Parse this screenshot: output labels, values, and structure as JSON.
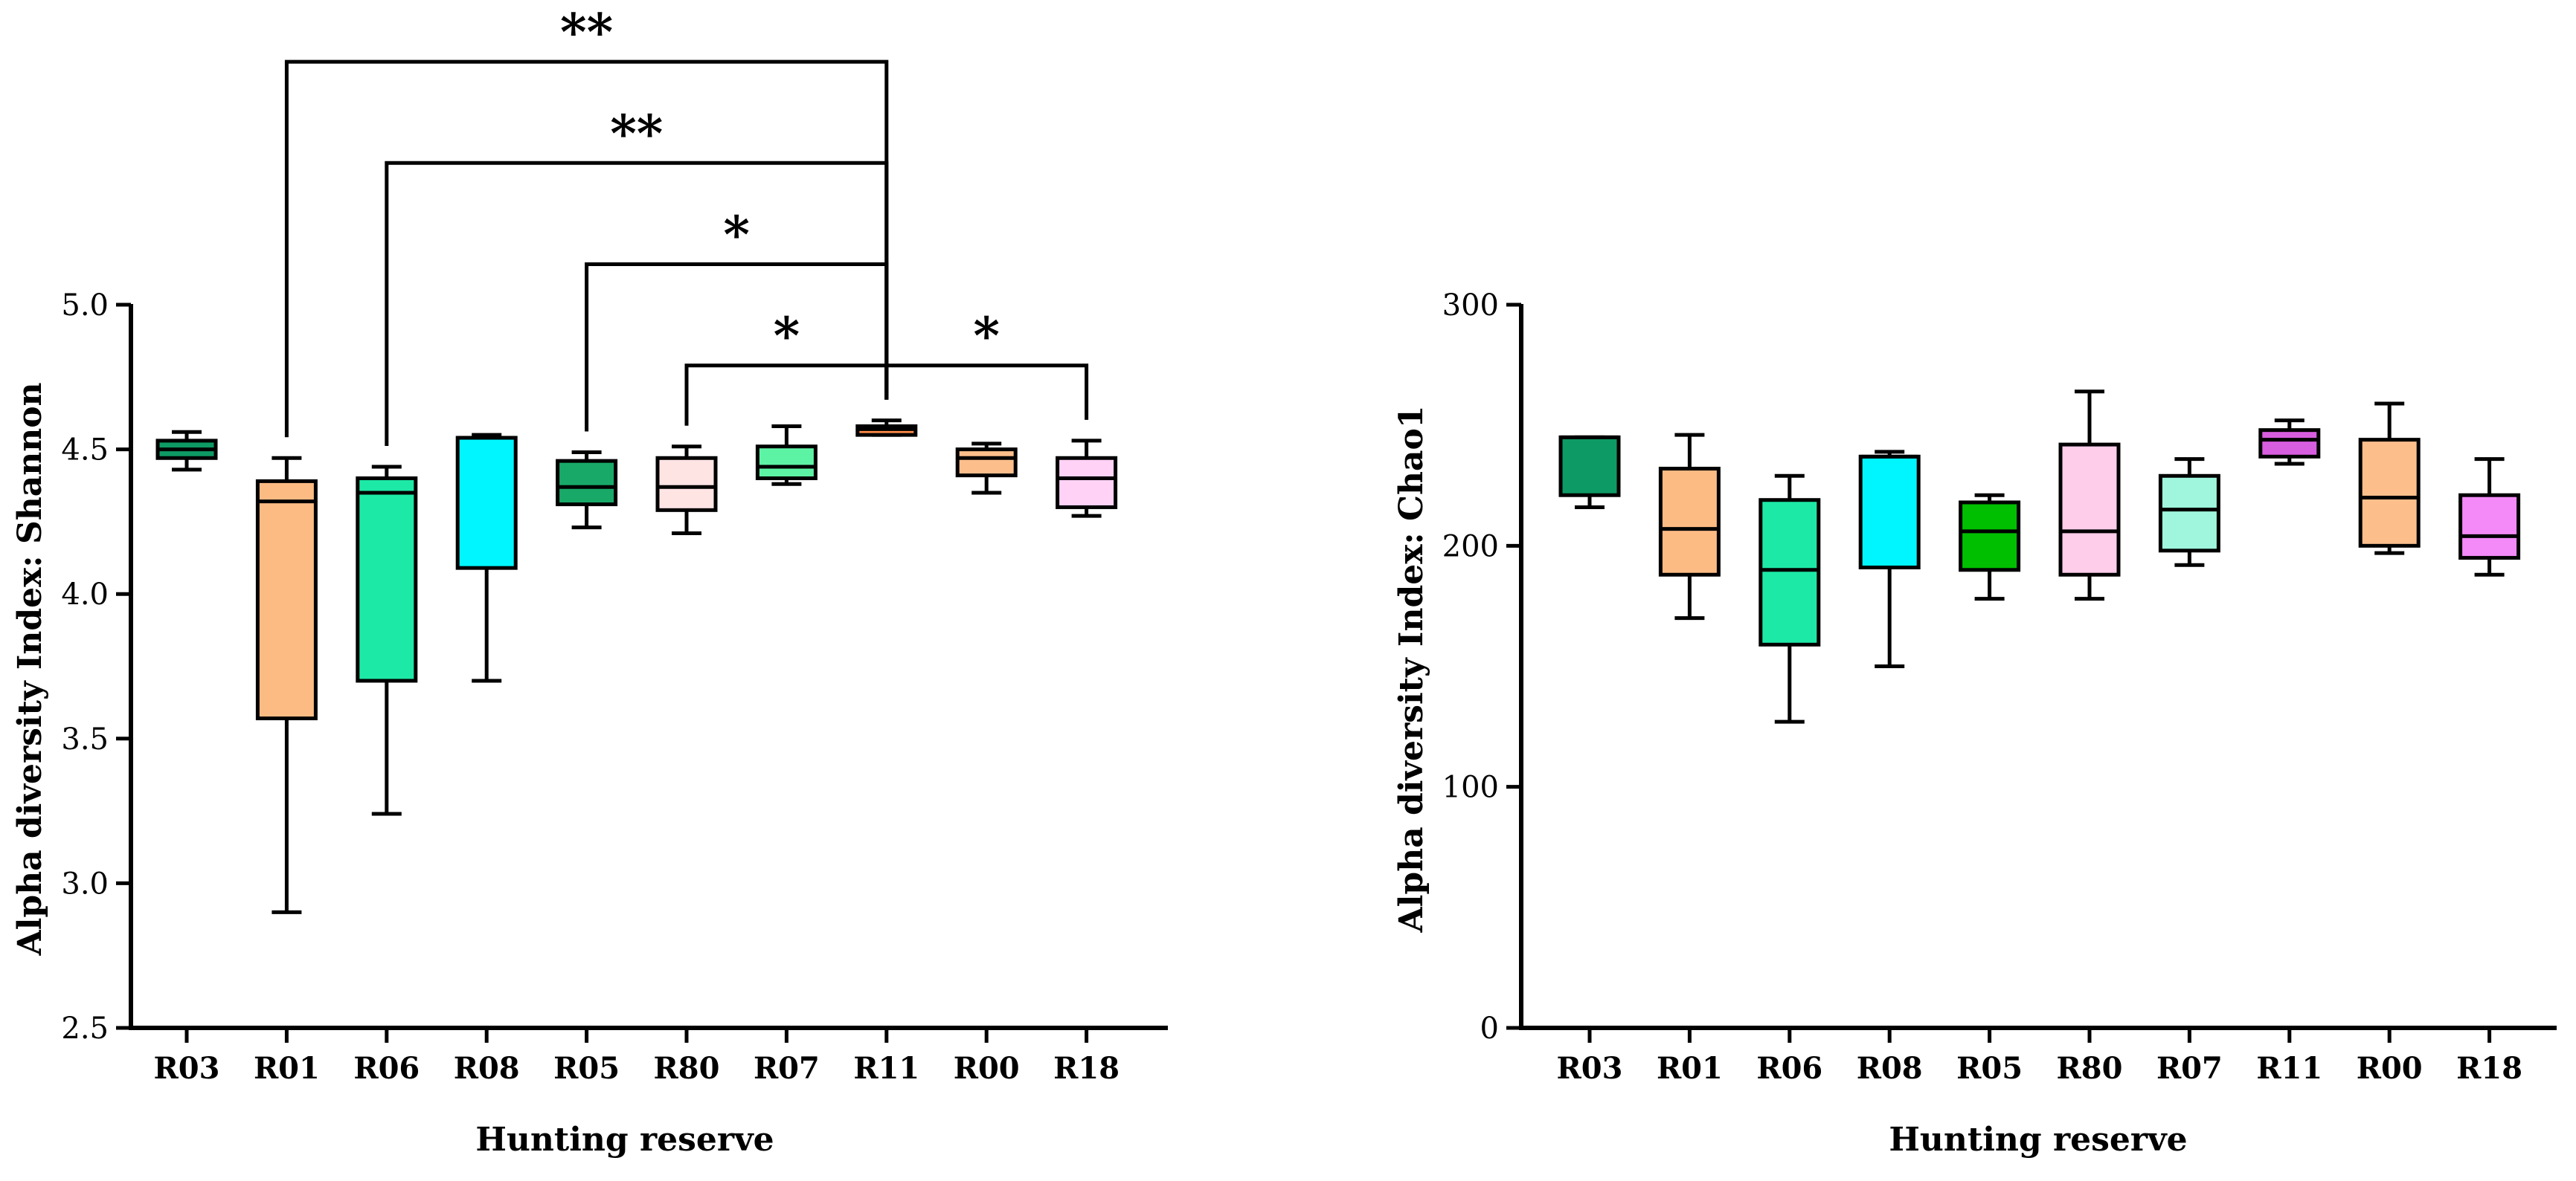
{
  "chart_data": [
    {
      "type": "box",
      "title": "",
      "xlabel": "Hunting reserve",
      "ylabel": "Alpha diversity Index: Shannon",
      "ylim": [
        2.5,
        5.0
      ],
      "yticks": [
        "2.5",
        "3.0",
        "3.5",
        "4.0",
        "4.5",
        "5.0"
      ],
      "categories": [
        "R03",
        "R01",
        "R06",
        "R08",
        "R05",
        "R80",
        "R07",
        "R11",
        "R00",
        "R18"
      ],
      "colors": [
        "#0e9a64",
        "#fdbb84",
        "#1de9a6",
        "#00f6ff",
        "#18a968",
        "#ffe4e4",
        "#5df3a4",
        "#ff8c4a",
        "#fcbf8c",
        "#ffd2f6"
      ],
      "boxes": [
        {
          "min": 4.43,
          "q1": 4.47,
          "median": 4.5,
          "q3": 4.53,
          "max": 4.56
        },
        {
          "min": 2.9,
          "q1": 3.57,
          "median": 4.32,
          "q3": 4.39,
          "max": 4.47
        },
        {
          "min": 3.24,
          "q1": 3.7,
          "median": 4.35,
          "q3": 4.4,
          "max": 4.44
        },
        {
          "min": 3.7,
          "q1": 4.09,
          "median": 4.54,
          "q3": 4.54,
          "max": 4.55
        },
        {
          "min": 4.23,
          "q1": 4.31,
          "median": 4.37,
          "q3": 4.46,
          "max": 4.49
        },
        {
          "min": 4.21,
          "q1": 4.29,
          "median": 4.37,
          "q3": 4.47,
          "max": 4.51
        },
        {
          "min": 4.38,
          "q1": 4.4,
          "median": 4.44,
          "q3": 4.51,
          "max": 4.58
        },
        {
          "min": 4.55,
          "q1": 4.55,
          "median": 4.57,
          "q3": 4.58,
          "max": 4.6
        },
        {
          "min": 4.35,
          "q1": 4.41,
          "median": 4.47,
          "q3": 4.5,
          "max": 4.52
        },
        {
          "min": 4.27,
          "q1": 4.3,
          "median": 4.4,
          "q3": 4.47,
          "max": 4.53
        }
      ],
      "significance": [
        {
          "from": "R01",
          "to": "R11",
          "label": "**",
          "level": 5.84
        },
        {
          "from": "R06",
          "to": "R11",
          "label": "**",
          "level": 5.49
        },
        {
          "from": "R05",
          "to": "R11",
          "label": "*",
          "level": 5.14
        },
        {
          "from": "R80",
          "to": "R11",
          "label": "*",
          "level": 4.79
        },
        {
          "from": "R11",
          "to": "R18",
          "label": "*",
          "level": 4.79
        }
      ]
    },
    {
      "type": "box",
      "title": "",
      "xlabel": "Hunting reserve",
      "ylabel": "Alpha diversity Index: Chao1",
      "ylim": [
        0,
        300
      ],
      "yticks": [
        "0",
        "100",
        "200",
        "300"
      ],
      "categories": [
        "R03",
        "R01",
        "R06",
        "R08",
        "R05",
        "R80",
        "R07",
        "R11",
        "R00",
        "R18"
      ],
      "colors": [
        "#0e9a64",
        "#fdbb84",
        "#1de9a6",
        "#00f6ff",
        "#00bf00",
        "#fdcdea",
        "#9ff6dc",
        "#d85ee0",
        "#fcbf8c",
        "#f38af7"
      ],
      "boxes": [
        {
          "min": 216,
          "q1": 221,
          "median": 245,
          "q3": 245,
          "max": 245
        },
        {
          "min": 170,
          "q1": 188,
          "median": 207,
          "q3": 232,
          "max": 246
        },
        {
          "min": 127,
          "q1": 159,
          "median": 190,
          "q3": 219,
          "max": 229
        },
        {
          "min": 150,
          "q1": 191,
          "median": 237,
          "q3": 237,
          "max": 239
        },
        {
          "min": 178,
          "q1": 190,
          "median": 206,
          "q3": 218,
          "max": 221
        },
        {
          "min": 178,
          "q1": 188,
          "median": 206,
          "q3": 242,
          "max": 264
        },
        {
          "min": 192,
          "q1": 198,
          "median": 215,
          "q3": 229,
          "max": 236
        },
        {
          "min": 234,
          "q1": 237,
          "median": 244,
          "q3": 248,
          "max": 252
        },
        {
          "min": 197,
          "q1": 200,
          "median": 220,
          "q3": 244,
          "max": 259
        },
        {
          "min": 188,
          "q1": 195,
          "median": 204,
          "q3": 221,
          "max": 236
        }
      ],
      "significance": []
    }
  ]
}
